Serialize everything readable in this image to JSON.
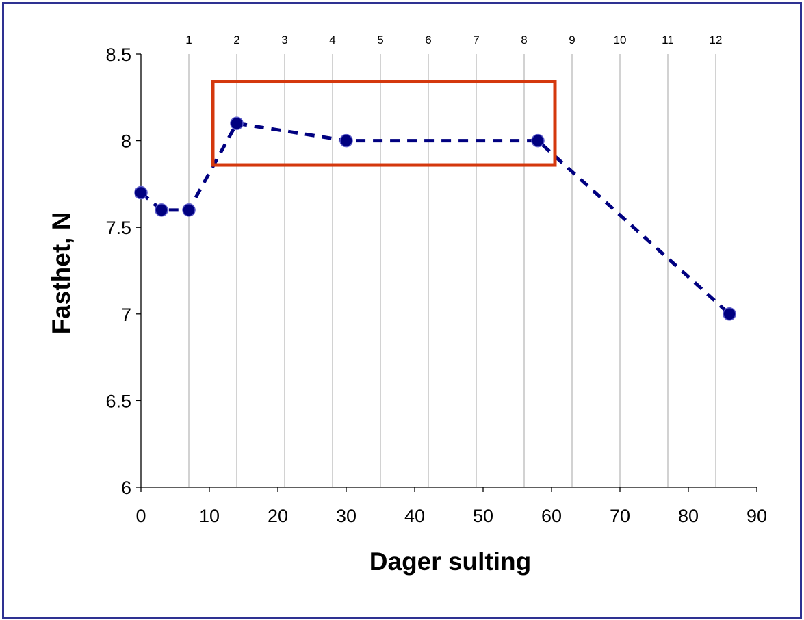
{
  "chart_data": {
    "type": "scatter",
    "xlabel": "Dager sulting",
    "ylabel": "Fasthet, N",
    "xlim": [
      0,
      90
    ],
    "ylim": [
      6,
      8.5
    ],
    "x_ticks": [
      "0",
      "10",
      "20",
      "30",
      "40",
      "50",
      "60",
      "70",
      "80",
      "90"
    ],
    "y_ticks": [
      "6",
      "6.5",
      "7",
      "7.5",
      "8",
      "8.5"
    ],
    "week_lines": {
      "labels": [
        "1",
        "2",
        "3",
        "4",
        "5",
        "6",
        "7",
        "8",
        "9",
        "10",
        "11",
        "12"
      ],
      "x": [
        7,
        14,
        21,
        28,
        35,
        42,
        49,
        56,
        63,
        70,
        77,
        84
      ]
    },
    "series": [
      {
        "x": [
          0,
          3,
          7,
          14,
          30,
          58,
          86
        ],
        "y": [
          7.7,
          7.6,
          7.6,
          8.1,
          8.0,
          8.0,
          7.0
        ],
        "line_style": "dashed",
        "color": "#000080"
      }
    ],
    "highlight_box": {
      "x_range": [
        10.5,
        60.5
      ],
      "y_range": [
        7.86,
        8.34
      ],
      "color": "#d4380d"
    },
    "frame_color": "#2e3192",
    "grid_color": "#a6a6a6"
  }
}
